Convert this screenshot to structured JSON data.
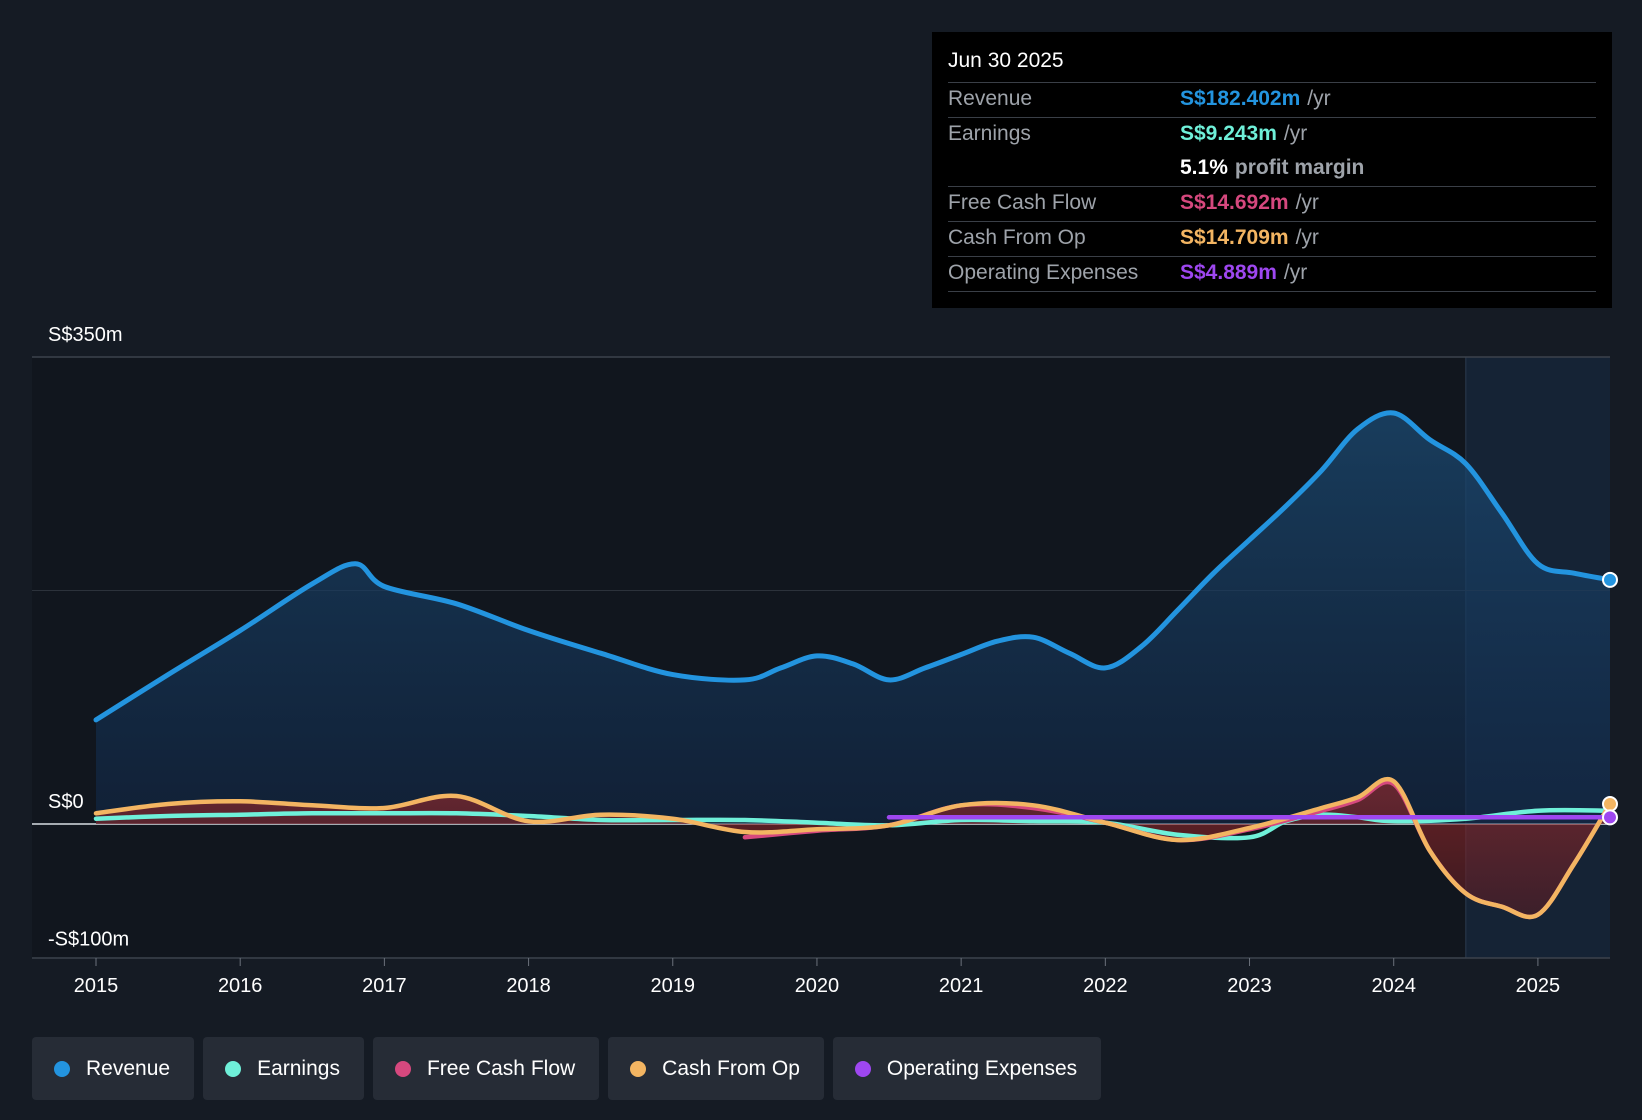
{
  "tooltip": {
    "date": "Jun 30 2025",
    "rows": [
      {
        "label": "Revenue",
        "value": "S$182.402m",
        "unit": "/yr",
        "color": "#2394df"
      },
      {
        "label": "Earnings",
        "value": "S$9.243m",
        "unit": "/yr",
        "color": "#6ff0d9"
      },
      {
        "label": "",
        "value": "5.1%",
        "unit": "profit margin",
        "color": "#ffffff"
      },
      {
        "label": "Free Cash Flow",
        "value": "S$14.692m",
        "unit": "/yr",
        "color": "#d6487e"
      },
      {
        "label": "Cash From Op",
        "value": "S$14.709m",
        "unit": "/yr",
        "color": "#f3b562"
      },
      {
        "label": "Operating Expenses",
        "value": "S$4.889m",
        "unit": "/yr",
        "color": "#9e47f0"
      }
    ]
  },
  "legend": [
    {
      "label": "Revenue",
      "color": "#2394df"
    },
    {
      "label": "Earnings",
      "color": "#6ff0d9"
    },
    {
      "label": "Free Cash Flow",
      "color": "#d6487e"
    },
    {
      "label": "Cash From Op",
      "color": "#f3b562"
    },
    {
      "label": "Operating Expenses",
      "color": "#9e47f0"
    }
  ],
  "chart_data": {
    "type": "area",
    "title": "",
    "xlabel": "",
    "ylabel": "",
    "y_tick_labels": [
      "S$350m",
      "S$0",
      "-S$100m"
    ],
    "y_ticks": [
      350,
      0,
      -100
    ],
    "ylim": [
      -100,
      350
    ],
    "xlim": [
      2015,
      2025.5
    ],
    "x_tick_labels": [
      "2015",
      "2016",
      "2017",
      "2018",
      "2019",
      "2020",
      "2021",
      "2022",
      "2023",
      "2024",
      "2025"
    ],
    "x_ticks": [
      2015,
      2016,
      2017,
      2018,
      2019,
      2020,
      2021,
      2022,
      2023,
      2024,
      2025
    ],
    "shaded_period_start": 2024.5,
    "series": [
      {
        "name": "Revenue",
        "color": "#2394df",
        "x": [
          2015,
          2015.5,
          2016,
          2016.5,
          2016.8,
          2017,
          2017.5,
          2018,
          2018.5,
          2019,
          2019.5,
          2019.75,
          2020,
          2020.25,
          2020.5,
          2020.75,
          2021,
          2021.25,
          2021.5,
          2021.75,
          2022,
          2022.25,
          2022.5,
          2022.75,
          2023,
          2023.25,
          2023.5,
          2023.75,
          2024,
          2024.25,
          2024.5,
          2024.75,
          2025,
          2025.25,
          2025.5
        ],
        "values": [
          78,
          112,
          145,
          180,
          195,
          178,
          165,
          145,
          128,
          112,
          108,
          117,
          126,
          120,
          108,
          117,
          127,
          137,
          140,
          128,
          117,
          133,
          160,
          188,
          213,
          238,
          265,
          296,
          308,
          288,
          270,
          233,
          195,
          188,
          183
        ]
      },
      {
        "name": "Earnings",
        "color": "#6ff0d9",
        "x": [
          2015,
          2015.5,
          2016,
          2016.5,
          2017,
          2017.5,
          2018,
          2018.5,
          2019,
          2019.5,
          2020,
          2020.5,
          2021,
          2021.5,
          2022,
          2022.5,
          2023,
          2023.25,
          2023.5,
          2023.75,
          2024,
          2024.5,
          2025,
          2025.5
        ],
        "values": [
          4,
          6,
          7,
          8,
          8,
          8,
          6,
          3,
          3,
          3,
          1,
          -1,
          3,
          2,
          1,
          -8,
          -10,
          2,
          7,
          5,
          2,
          4,
          10,
          10
        ]
      },
      {
        "name": "Free Cash Flow",
        "color": "#d6487e",
        "x": [
          2019.5,
          2020,
          2020.5,
          2021,
          2021.5,
          2022,
          2022.5,
          2023,
          2023.5,
          2023.75,
          2024,
          2024.25,
          2024.5,
          2024.75,
          2025,
          2025.25,
          2025.5
        ],
        "values": [
          -10,
          -5,
          -1,
          14,
          12,
          1,
          -12,
          -4,
          10,
          18,
          30,
          -20,
          -52,
          -62,
          -68,
          -30,
          15
        ]
      },
      {
        "name": "Cash From Op",
        "color": "#f3b562",
        "x": [
          2015,
          2015.5,
          2016,
          2016.5,
          2017,
          2017.5,
          2018,
          2018.5,
          2019,
          2019.5,
          2020,
          2020.5,
          2021,
          2021.5,
          2022,
          2022.5,
          2023,
          2023.5,
          2023.75,
          2024,
          2024.25,
          2024.5,
          2024.75,
          2025,
          2025.25,
          2025.5
        ],
        "values": [
          8,
          15,
          17,
          14,
          12,
          21,
          2,
          7,
          4,
          -6,
          -4,
          -1,
          14,
          14,
          1,
          -12,
          -3,
          12,
          20,
          32,
          -20,
          -52,
          -62,
          -68,
          -30,
          15
        ]
      },
      {
        "name": "Operating Expenses",
        "color": "#9e47f0",
        "x": [
          2020.5,
          2021,
          2022,
          2023,
          2024,
          2025,
          2025.5
        ],
        "values": [
          5,
          5,
          5,
          5,
          5,
          5,
          5
        ]
      }
    ]
  }
}
